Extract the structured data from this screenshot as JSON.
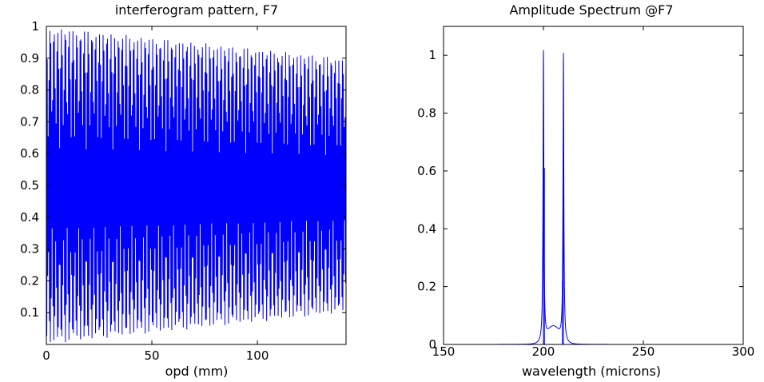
{
  "chart_data": [
    {
      "type": "line",
      "title": "interferogram pattern, F7",
      "xlabel": "opd (mm)",
      "ylabel": "",
      "xlim": [
        0,
        142
      ],
      "ylim": [
        0,
        1
      ],
      "xticks": [
        0,
        50,
        100
      ],
      "xtick_labels": [
        "0",
        "50",
        "100"
      ],
      "yticks": [
        0.1,
        0.2,
        0.3,
        0.4,
        0.5,
        0.6,
        0.7,
        0.8,
        0.9,
        1
      ],
      "ytick_labels": [
        "0.1",
        "0.2",
        "0.3",
        "0.4",
        "0.5",
        "0.6",
        "0.7",
        "0.8",
        "0.9",
        "1"
      ],
      "series": [
        {
          "color": "#0000ff",
          "description_values": {
            "mean": 0.5,
            "fringe_period_mm": 3.6,
            "envelope_max_start": 1.0,
            "envelope_max_end": 0.9,
            "envelope_min_start": 0.0,
            "envelope_min_end": 0.1
          }
        }
      ],
      "grid": false
    },
    {
      "type": "line",
      "title": "Amplitude Spectrum @F7",
      "xlabel": "wavelength (microns)",
      "ylabel": "",
      "xlim": [
        150,
        300
      ],
      "ylim": [
        0,
        1.1
      ],
      "xticks": [
        150,
        200,
        250,
        300
      ],
      "xtick_labels": [
        "150",
        "200",
        "250",
        "300"
      ],
      "yticks": [
        0,
        0.2,
        0.4,
        0.6,
        0.8,
        1
      ],
      "ytick_labels": [
        "0",
        "0.2",
        "0.4",
        "0.6",
        "0.8",
        "1"
      ],
      "series": [
        {
          "color": "#0000ff",
          "peaks": [
            {
              "x": 200,
              "y": 1.0
            },
            {
              "x": 200.5,
              "y": 0.61
            },
            {
              "x": 209.5,
              "y": 0.22
            },
            {
              "x": 210,
              "y": 0.99
            }
          ]
        }
      ],
      "grid": false
    }
  ]
}
